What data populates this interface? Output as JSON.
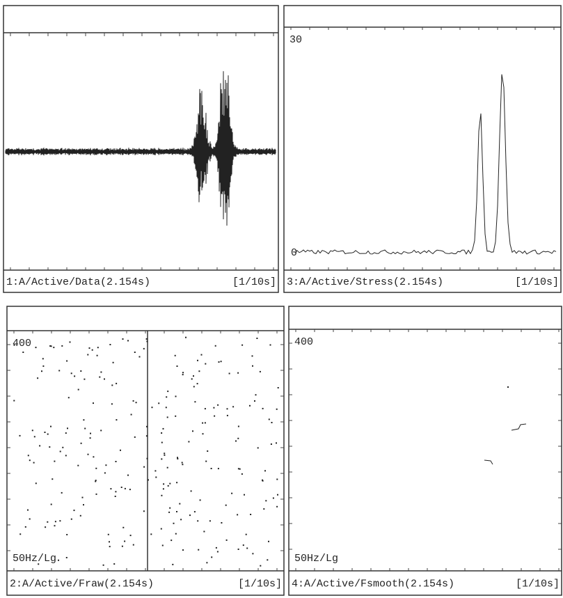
{
  "panels": [
    {
      "footer": {
        "label": "1:A/Active/Data(2.154s)",
        "scale": "[1/10s]"
      }
    },
    {
      "y_top": "30",
      "y_bottom": "0",
      "footer": {
        "label": "3:A/Active/Stress(2.154s)",
        "scale": "[1/10s]"
      }
    },
    {
      "y_top": "400",
      "y_bottom": "50Hz/Lg",
      "footer": {
        "label": "2:A/Active/Fraw(2.154s)",
        "scale": "[1/10s]"
      }
    },
    {
      "y_top": "400",
      "y_bottom": "50Hz/Lg",
      "footer": {
        "label": "4:A/Active/Fsmooth(2.154s)",
        "scale": "[1/10s]"
      }
    }
  ]
}
